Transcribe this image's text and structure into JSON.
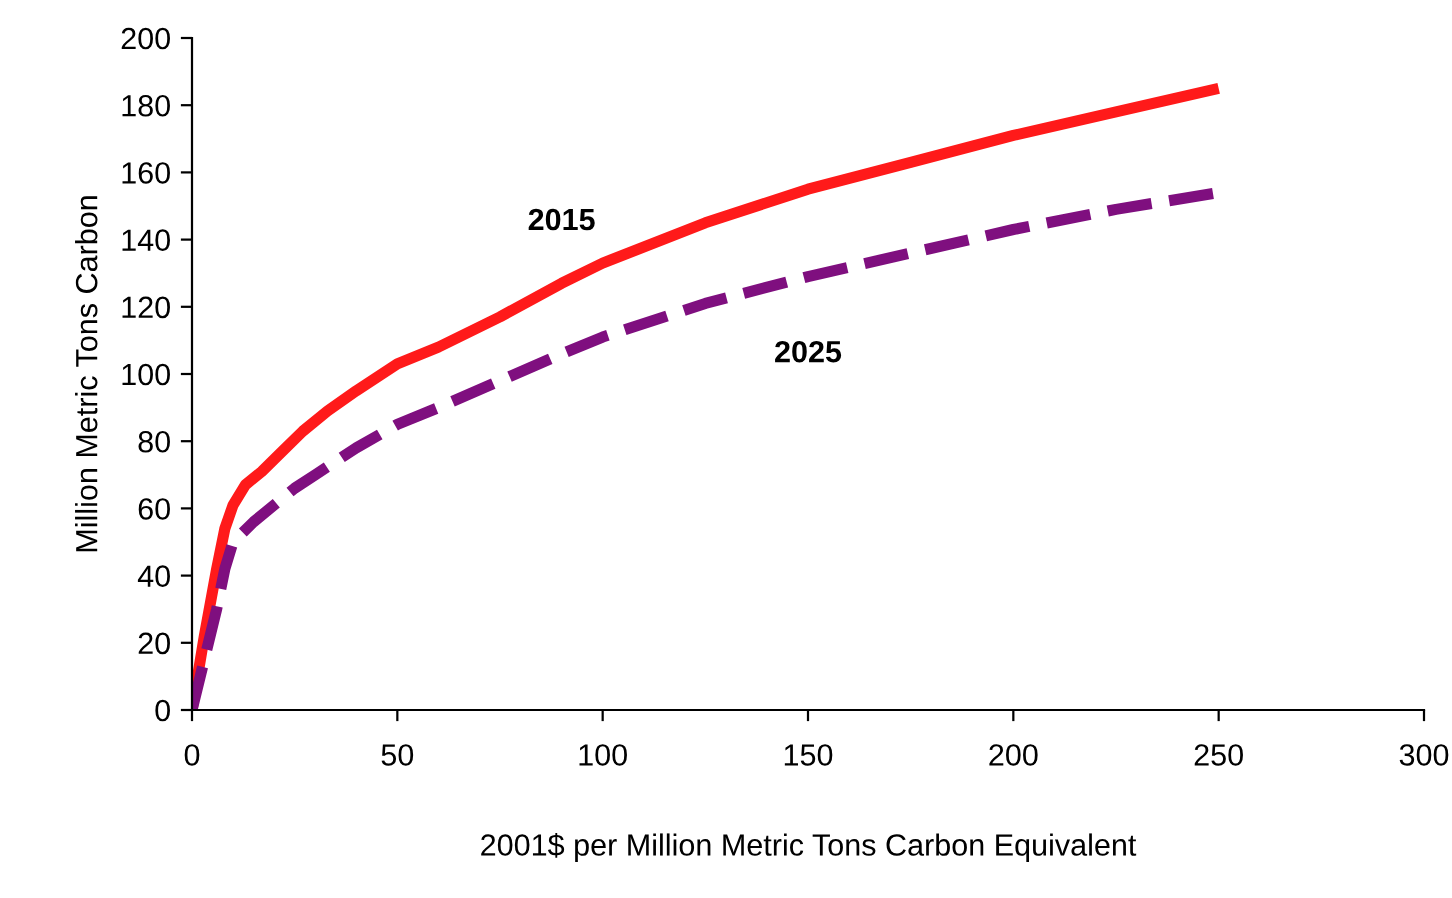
{
  "chart_data": {
    "type": "line",
    "xlabel": "2001$ per Million Metric Tons Carbon Equivalent",
    "ylabel": "Million Metric Tons Carbon",
    "xlim": [
      0,
      300
    ],
    "xticks": [
      0,
      50,
      100,
      150,
      200,
      250,
      300
    ],
    "ylim": [
      0,
      200
    ],
    "yticks": [
      0,
      20,
      40,
      60,
      80,
      100,
      120,
      140,
      160,
      180,
      200
    ],
    "grid": false,
    "legend": false,
    "marker": "none",
    "series": [
      {
        "name": "2015",
        "color": "#ff1a1a",
        "line_style": "solid",
        "x": [
          0,
          3,
          6,
          8,
          10,
          13,
          17,
          22,
          27,
          33,
          40,
          50,
          60,
          75,
          90,
          100,
          125,
          150,
          175,
          200,
          225,
          250
        ],
        "values": [
          0,
          22,
          42,
          54,
          61,
          67,
          71,
          77,
          83,
          89,
          95,
          103,
          108,
          117,
          127,
          133,
          145,
          155,
          163,
          171,
          178,
          185
        ]
      },
      {
        "name": "2025",
        "color": "#7f0f7f",
        "line_style": "dashed",
        "x": [
          0,
          3,
          6,
          8,
          10,
          15,
          20,
          25,
          30,
          40,
          50,
          60,
          75,
          90,
          100,
          125,
          150,
          175,
          200,
          225,
          250
        ],
        "values": [
          0,
          15,
          30,
          42,
          50,
          56,
          61,
          66,
          70,
          78,
          85,
          90,
          98,
          106,
          111,
          121,
          129,
          136,
          143,
          149,
          154
        ]
      }
    ]
  }
}
